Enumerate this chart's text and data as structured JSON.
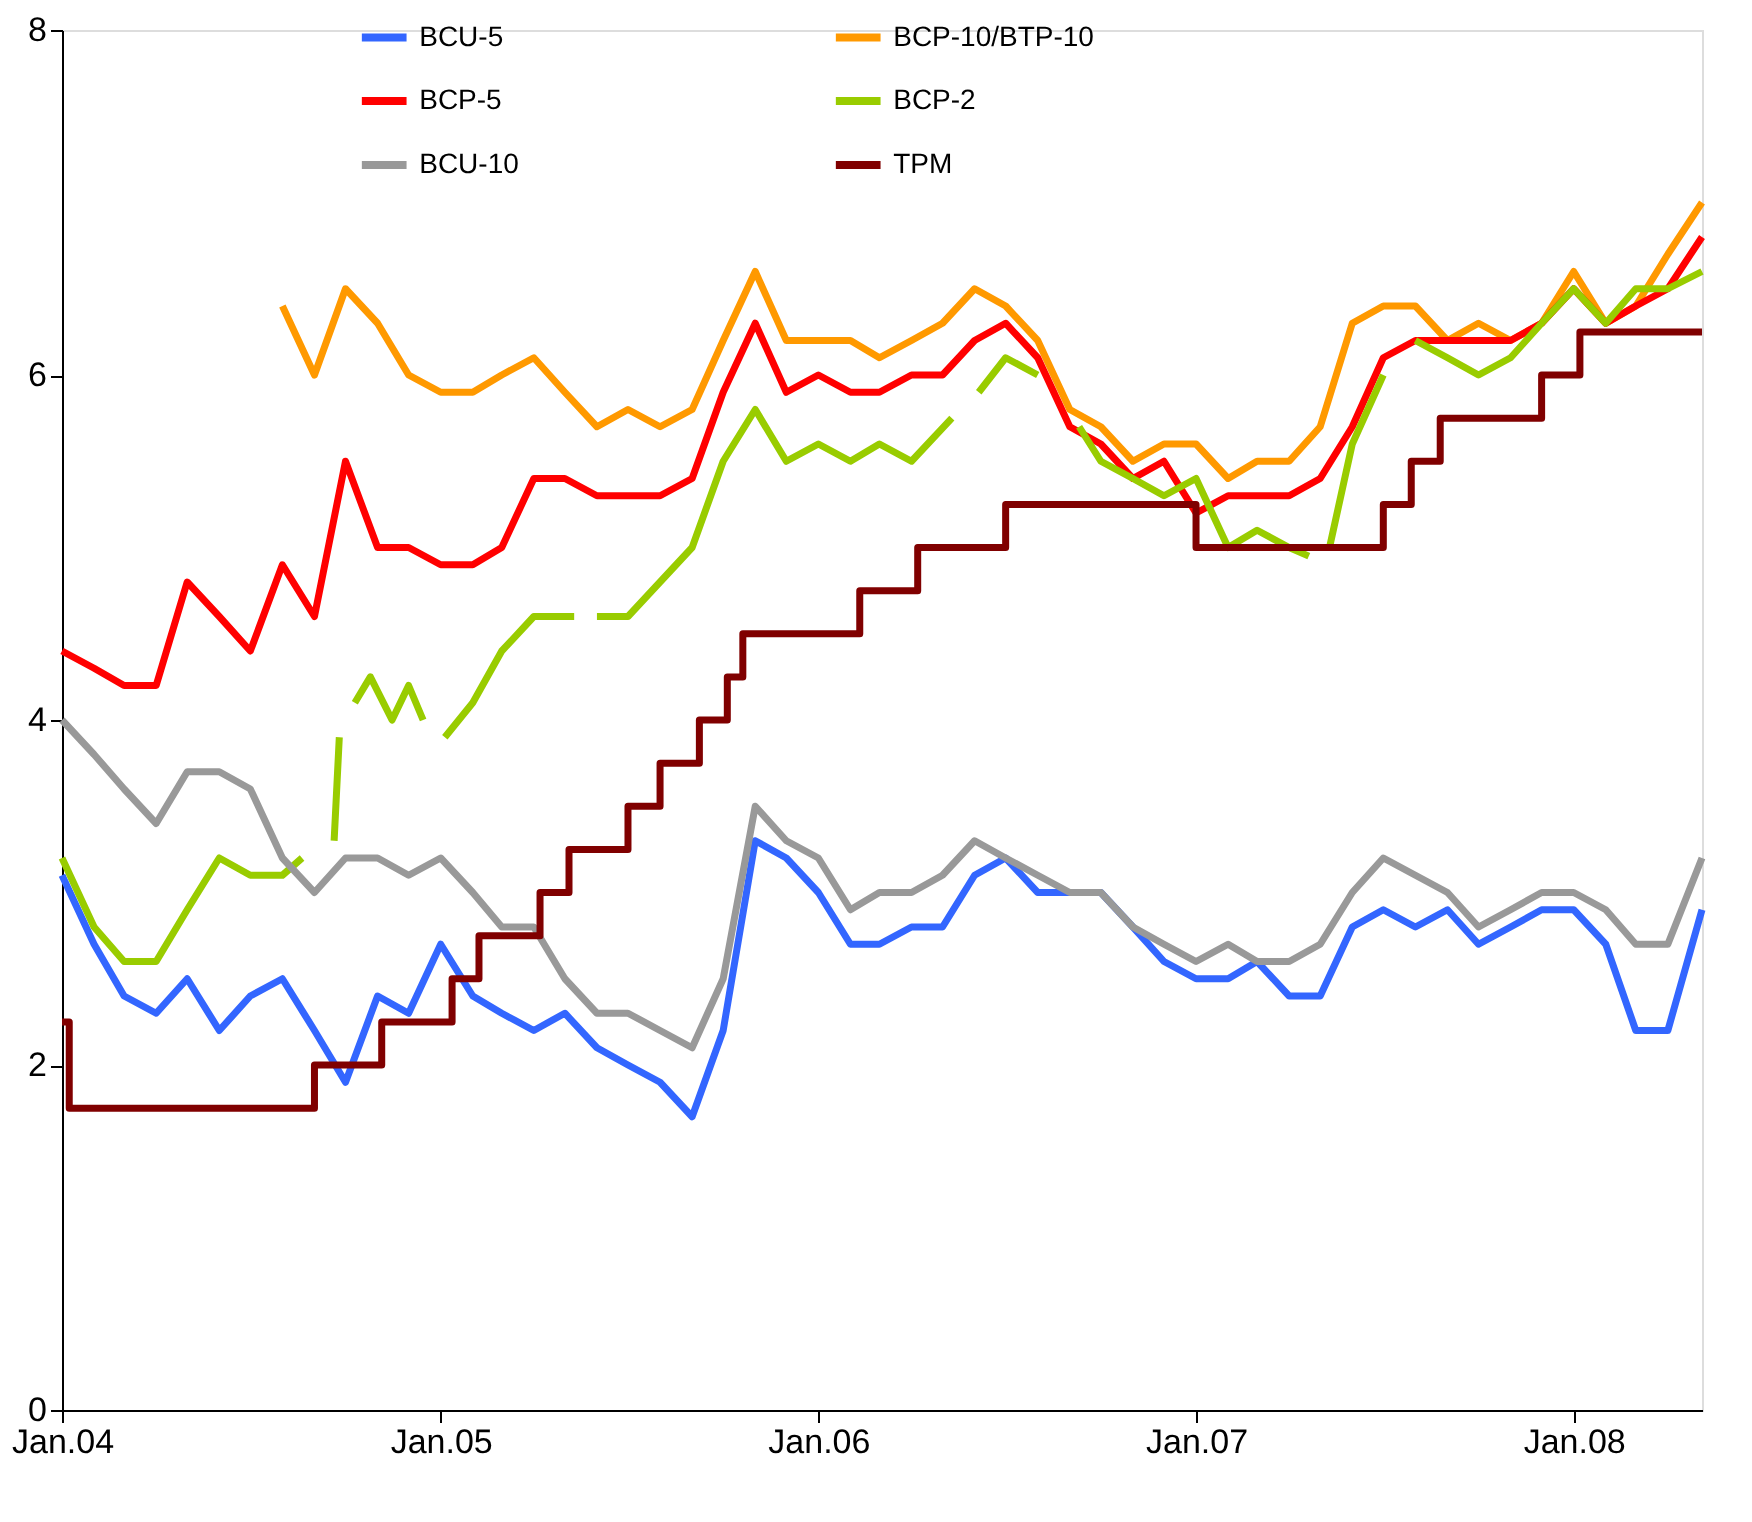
{
  "chart_data": {
    "type": "line",
    "xlim": [
      "2004-01-01",
      "2008-05-04"
    ],
    "ylim": [
      0,
      8
    ],
    "yticks": [
      0,
      2,
      4,
      6,
      8
    ],
    "xticks": [
      {
        "value": "2004-01-01",
        "label": "Jan.04"
      },
      {
        "value": "2005-01-01",
        "label": "Jan.05"
      },
      {
        "value": "2006-01-01",
        "label": "Jan.06"
      },
      {
        "value": "2007-01-01",
        "label": "Jan.07"
      },
      {
        "value": "2008-01-01",
        "label": "Jan.08"
      }
    ],
    "grid": false,
    "legend": "top",
    "line_style": "solid",
    "marker": "none",
    "x": [
      "2004-01-01",
      "2004-02-01",
      "2004-03-01",
      "2004-04-01",
      "2004-05-01",
      "2004-06-01",
      "2004-07-01",
      "2004-08-01",
      "2004-09-01",
      "2004-10-01",
      "2004-11-01",
      "2004-12-01",
      "2005-01-01",
      "2005-02-01",
      "2005-03-01",
      "2005-04-01",
      "2005-05-01",
      "2005-06-01",
      "2005-07-01",
      "2005-08-01",
      "2005-09-01",
      "2005-10-01",
      "2005-11-01",
      "2005-12-01",
      "2006-01-01",
      "2006-02-01",
      "2006-03-01",
      "2006-04-01",
      "2006-05-01",
      "2006-06-01",
      "2006-07-01",
      "2006-08-01",
      "2006-09-01",
      "2006-10-01",
      "2006-11-01",
      "2006-12-01",
      "2007-01-01",
      "2007-02-01",
      "2007-03-01",
      "2007-04-01",
      "2007-05-01",
      "2007-06-01",
      "2007-07-01",
      "2007-08-01",
      "2007-09-01",
      "2007-10-01",
      "2007-11-01",
      "2007-12-01",
      "2008-01-01",
      "2008-02-01",
      "2008-03-01",
      "2008-04-01",
      "2008-05-04"
    ],
    "series": [
      {
        "name": "BCU-5",
        "color": "#3366ff",
        "values": [
          3.1,
          2.7,
          2.4,
          2.3,
          2.5,
          2.2,
          2.4,
          2.5,
          2.2,
          1.9,
          2.4,
          2.3,
          2.7,
          2.4,
          2.3,
          2.2,
          2.3,
          2.1,
          2.0,
          1.9,
          1.7,
          2.2,
          3.3,
          3.2,
          3.0,
          2.7,
          2.7,
          2.8,
          2.8,
          3.1,
          3.2,
          3.0,
          3.0,
          3.0,
          2.8,
          2.6,
          2.5,
          2.5,
          2.6,
          2.4,
          2.4,
          2.8,
          2.9,
          2.8,
          2.9,
          2.7,
          2.8,
          2.9,
          2.9,
          2.7,
          2.2,
          2.2,
          2.9
        ]
      },
      {
        "name": "BCP-10/BTP-10",
        "color": "#ff9900",
        "values": [
          null,
          null,
          null,
          null,
          null,
          null,
          null,
          6.4,
          6.0,
          6.5,
          6.3,
          6.0,
          5.9,
          5.9,
          6.0,
          6.1,
          5.9,
          5.7,
          5.8,
          5.7,
          5.8,
          6.2,
          6.6,
          6.2,
          6.2,
          6.2,
          6.1,
          6.2,
          6.3,
          6.5,
          6.4,
          6.2,
          5.8,
          5.7,
          5.5,
          5.6,
          5.6,
          5.4,
          5.5,
          5.5,
          5.7,
          6.3,
          6.4,
          6.4,
          6.2,
          6.3,
          6.2,
          6.3,
          6.6,
          6.3,
          6.4,
          6.7,
          7.0
        ]
      },
      {
        "name": "BCP-5",
        "color": "#ff0000",
        "values": [
          4.4,
          4.3,
          4.2,
          4.2,
          4.8,
          4.6,
          4.4,
          4.9,
          4.6,
          5.5,
          5.0,
          5.0,
          4.9,
          4.9,
          5.0,
          5.4,
          5.4,
          5.3,
          5.3,
          5.3,
          5.4,
          5.9,
          6.3,
          5.9,
          6.0,
          5.9,
          5.9,
          6.0,
          6.0,
          6.2,
          6.3,
          6.1,
          5.7,
          5.6,
          5.4,
          5.5,
          5.2,
          5.3,
          5.3,
          5.3,
          5.4,
          5.7,
          6.1,
          6.2,
          6.2,
          6.2,
          6.2,
          6.3,
          6.5,
          6.3,
          6.4,
          6.5,
          6.8
        ]
      },
      {
        "name": "BCP-2",
        "color": "#99cc00",
        "x": [
          "2004-01-01",
          "2004-02-01",
          "2004-03-01",
          "2004-04-01",
          "2004-05-01",
          "2004-06-01",
          "2004-07-01",
          "2004-08-01",
          "2004-08-20",
          "2004-09-01",
          "2004-09-20",
          "2004-09-25",
          "2004-10-01",
          "2004-10-10",
          "2004-10-25",
          "2004-11-15",
          "2004-12-01",
          "2004-12-15",
          "2004-12-25",
          "2005-01-05",
          "2005-02-01",
          "2005-03-01",
          "2005-04-01",
          "2005-05-10",
          "2005-05-20",
          "2005-06-01",
          "2005-07-01",
          "2005-08-01",
          "2005-09-01",
          "2005-10-01",
          "2005-11-01",
          "2005-12-01",
          "2006-01-01",
          "2006-02-01",
          "2006-03-01",
          "2006-04-01",
          "2006-05-10",
          "2006-05-20",
          "2006-06-05",
          "2006-07-01",
          "2006-08-01",
          "2006-08-20",
          "2006-09-10",
          "2006-10-01",
          "2006-11-01",
          "2006-12-01",
          "2007-01-01",
          "2007-02-01",
          "2007-03-01",
          "2007-04-01",
          "2007-04-20",
          "2007-05-01",
          "2007-05-10",
          "2007-06-01",
          "2007-07-01",
          "2007-07-10",
          "2007-08-01",
          "2007-09-01",
          "2007-10-01",
          "2007-11-01",
          "2007-12-01",
          "2008-01-01",
          "2008-02-01",
          "2008-03-01",
          "2008-04-01",
          "2008-05-04"
        ],
        "values": [
          3.2,
          2.8,
          2.6,
          2.6,
          2.9,
          3.2,
          3.1,
          3.1,
          3.2,
          null,
          3.3,
          3.9,
          null,
          4.1,
          4.25,
          4.0,
          4.2,
          4.0,
          null,
          3.9,
          4.1,
          4.4,
          4.6,
          4.6,
          null,
          4.6,
          4.6,
          4.8,
          5.0,
          5.5,
          5.8,
          5.5,
          5.6,
          5.5,
          5.6,
          5.5,
          5.75,
          null,
          5.9,
          6.1,
          6.0,
          null,
          5.7,
          5.5,
          5.4,
          5.3,
          5.4,
          5.0,
          5.1,
          5.0,
          4.95,
          null,
          5.0,
          5.6,
          6.0,
          null,
          6.2,
          6.1,
          6.0,
          6.1,
          6.3,
          6.5,
          6.3,
          6.5,
          6.5,
          6.6
        ]
      },
      {
        "name": "BCU-10",
        "color": "#999999",
        "values": [
          4.0,
          3.8,
          3.6,
          3.4,
          3.7,
          3.7,
          3.6,
          3.2,
          3.0,
          3.2,
          3.2,
          3.1,
          3.2,
          3.0,
          2.8,
          2.8,
          2.5,
          2.3,
          2.3,
          2.2,
          2.1,
          2.5,
          3.5,
          3.3,
          3.2,
          2.9,
          3.0,
          3.0,
          3.1,
          3.3,
          3.2,
          3.1,
          3.0,
          3.0,
          2.8,
          2.7,
          2.6,
          2.7,
          2.6,
          2.6,
          2.7,
          3.0,
          3.2,
          3.1,
          3.0,
          2.8,
          2.9,
          3.0,
          3.0,
          2.9,
          2.7,
          2.7,
          3.2
        ]
      },
      {
        "name": "TPM",
        "color": "#800000",
        "type": "step",
        "x": [
          "2004-01-01",
          "2004-01-08",
          "2004-09-01",
          "2004-11-05",
          "2005-01-12",
          "2005-02-07",
          "2005-04-07",
          "2005-05-05",
          "2005-07-01",
          "2005-08-01",
          "2005-09-08",
          "2005-10-05",
          "2005-10-20",
          "2006-02-10",
          "2006-04-07",
          "2006-07-01",
          "2007-01-01",
          "2007-07-01",
          "2007-07-28",
          "2007-08-25",
          "2007-12-01",
          "2008-01-07",
          "2008-05-04"
        ],
        "values": [
          2.25,
          1.75,
          2.0,
          2.25,
          2.5,
          2.75,
          3.0,
          3.25,
          3.5,
          3.75,
          4.0,
          4.25,
          4.5,
          4.75,
          5.0,
          5.25,
          5.0,
          5.25,
          5.5,
          5.75,
          6.0,
          6.25,
          6.25
        ]
      }
    ]
  }
}
